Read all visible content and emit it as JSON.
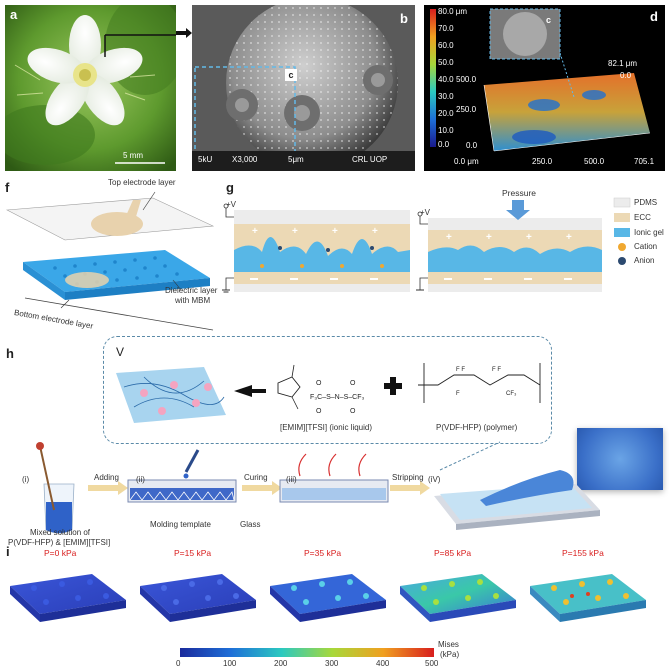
{
  "panels": {
    "a": {
      "label": "a",
      "scale_bar": "5 mm"
    },
    "b": {
      "label": "b",
      "inset_label": "c",
      "sem_info": [
        "5kU",
        "X3,000",
        "5μm",
        "CRL UOP"
      ]
    },
    "c": {
      "label": "c"
    },
    "d": {
      "label": "d",
      "colorbar_ticks": [
        "80.0 μm",
        "70.0",
        "60.0",
        "50.0",
        "40.0",
        "30.0",
        "20.0",
        "10.0",
        "0.0"
      ],
      "z_ticks": [
        "82.1 μm",
        "0.0"
      ],
      "y_ticks": [
        "500.0",
        "250.0",
        "0.0"
      ],
      "x_ticks": [
        "0.0 μm",
        "250.0",
        "500.0",
        "705.1"
      ]
    },
    "f": {
      "label": "f",
      "top_layer": "Top electrode layer",
      "dielectric": "Dielectric layer",
      "dielectric2": "with MBM",
      "bottom_layer": "Bottom electrode layer"
    },
    "g": {
      "label": "g",
      "voltage": "+V",
      "pressure": "Pressure",
      "legend": [
        {
          "name": "PDMS",
          "color": "#ececec"
        },
        {
          "name": "ECC",
          "color": "#ecd9b5"
        },
        {
          "name": "Ionic gel",
          "color": "#58b7e6"
        },
        {
          "name": "Cation",
          "color": "#f0a830"
        },
        {
          "name": "Anion",
          "color": "#2c4a70"
        }
      ]
    },
    "h": {
      "label": "h",
      "roman_v": "V",
      "ionic_liquid": "[EMIM][TFSI] (ionic liquid)",
      "polymer": "P(VDF-HFP) (polymer)",
      "steps": [
        {
          "roman": "(i)"
        },
        {
          "roman": "(ii)"
        },
        {
          "roman": "(iii)"
        },
        {
          "roman": "(iV)"
        }
      ],
      "arrows": [
        "Adding",
        "Curing",
        "Stripping"
      ],
      "mixed_solution": [
        "Mixed solution of",
        "P(VDF-HFP) & [EMIM][TFSI]"
      ],
      "molding_template": "Molding template",
      "glass": "Glass"
    },
    "i": {
      "label": "i",
      "pressures": [
        "P=0 kPa",
        "P=15 kPa",
        "P=35 kPa",
        "P=85 kPa",
        "P=155 kPa"
      ],
      "colorbar_ticks": [
        "0",
        "100",
        "200",
        "300",
        "400",
        "500"
      ],
      "unit": "Mises",
      "unit2": "(kPa)"
    }
  }
}
